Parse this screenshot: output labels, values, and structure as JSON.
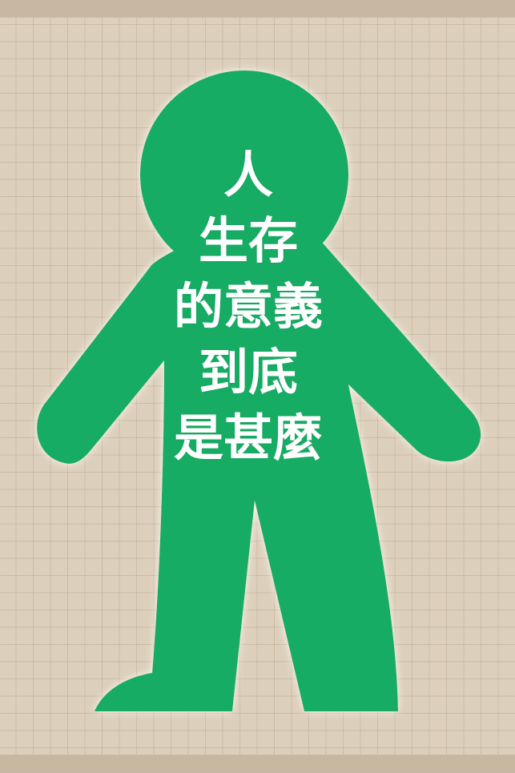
{
  "poster": {
    "title_lines": [
      "人",
      "生存",
      "的意義",
      "到底",
      "是甚麼"
    ]
  },
  "colors": {
    "figure_green": "#17ac64",
    "paper": "#dccfbb",
    "border": "#c8b8a2",
    "text": "#ffffff"
  },
  "icons": {
    "figure": "human-silhouette"
  }
}
